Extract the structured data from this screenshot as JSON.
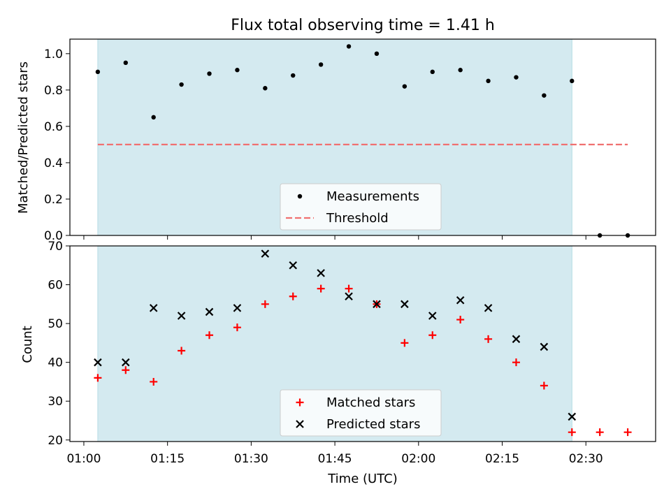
{
  "chart_data": [
    {
      "type": "scatter",
      "title": "Flux total observing time = 1.41 h",
      "xlabel": "",
      "ylabel": "Matched/Predicted stars",
      "ylim": [
        0.0,
        1.08
      ],
      "yticks": [
        "0.0",
        "0.2",
        "0.4",
        "0.6",
        "0.8",
        "1.0"
      ],
      "shaded_x_range": [
        "01:02:30",
        "02:27:30"
      ],
      "shade_color": "#d4eaf0",
      "legend": {
        "placement": "lower center",
        "entries": [
          "Measurements",
          "Threshold"
        ]
      },
      "threshold": {
        "name": "Threshold",
        "value": 0.5,
        "x_range": [
          "01:02:30",
          "02:37:30"
        ],
        "color": "#f07070"
      },
      "series": [
        {
          "name": "Measurements",
          "marker": "dot",
          "color": "#000000",
          "x": [
            "01:02:30",
            "01:07:30",
            "01:12:30",
            "01:17:30",
            "01:22:30",
            "01:27:30",
            "01:32:30",
            "01:37:30",
            "01:42:30",
            "01:47:30",
            "01:52:30",
            "01:57:30",
            "02:02:30",
            "02:07:30",
            "02:12:30",
            "02:17:30",
            "02:22:30",
            "02:27:30",
            "02:32:30",
            "02:37:30"
          ],
          "y": [
            0.9,
            0.95,
            0.65,
            0.83,
            0.89,
            0.91,
            0.81,
            0.88,
            0.94,
            1.04,
            1.0,
            0.82,
            0.9,
            0.91,
            0.85,
            0.87,
            0.77,
            0.85,
            0.0,
            0.0
          ]
        }
      ]
    },
    {
      "type": "scatter",
      "xlabel": "Time (UTC)",
      "ylabel": "Count",
      "ylim": [
        19.6,
        70.0
      ],
      "yticks": [
        "20",
        "30",
        "40",
        "50",
        "60",
        "70"
      ],
      "xticks": [
        "01:00",
        "01:15",
        "01:30",
        "01:45",
        "02:00",
        "02:15",
        "02:30"
      ],
      "shaded_x_range": [
        "01:02:30",
        "02:27:30"
      ],
      "shade_color": "#d4eaf0",
      "legend": {
        "placement": "lower center",
        "entries": [
          "Matched stars",
          "Predicted stars"
        ]
      },
      "series": [
        {
          "name": "Matched stars",
          "marker": "plus",
          "color": "#ff0000",
          "x": [
            "01:02:30",
            "01:07:30",
            "01:12:30",
            "01:17:30",
            "01:22:30",
            "01:27:30",
            "01:32:30",
            "01:37:30",
            "01:42:30",
            "01:47:30",
            "01:52:30",
            "01:57:30",
            "02:02:30",
            "02:07:30",
            "02:12:30",
            "02:17:30",
            "02:22:30",
            "02:27:30",
            "02:32:30",
            "02:37:30"
          ],
          "y": [
            36,
            38,
            35,
            43,
            47,
            49,
            55,
            57,
            59,
            59,
            55,
            45,
            47,
            51,
            46,
            40,
            34,
            22,
            22,
            22
          ]
        },
        {
          "name": "Predicted stars",
          "marker": "x",
          "color": "#000000",
          "x": [
            "01:02:30",
            "01:07:30",
            "01:12:30",
            "01:17:30",
            "01:22:30",
            "01:27:30",
            "01:32:30",
            "01:37:30",
            "01:42:30",
            "01:47:30",
            "01:52:30",
            "01:57:30",
            "02:02:30",
            "02:07:30",
            "02:12:30",
            "02:17:30",
            "02:22:30",
            "02:27:30"
          ],
          "y": [
            40,
            40,
            54,
            52,
            53,
            54,
            68,
            65,
            63,
            57,
            55,
            55,
            52,
            56,
            54,
            46,
            44,
            26
          ]
        }
      ]
    }
  ]
}
